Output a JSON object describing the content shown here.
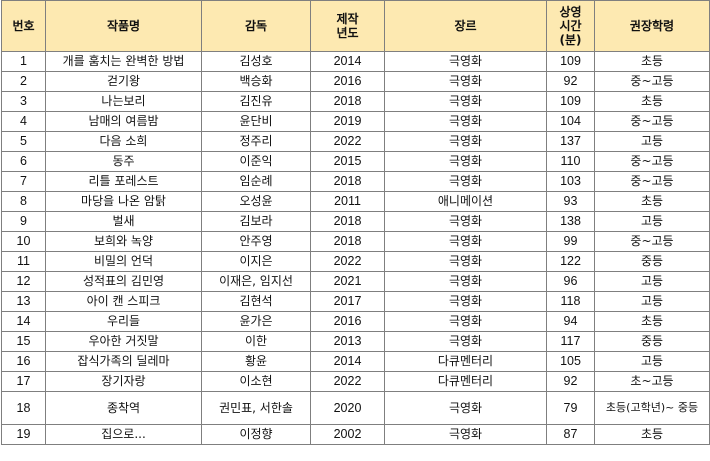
{
  "table": {
    "headers": {
      "no": "번호",
      "title": "작품명",
      "director": "감독",
      "year_line1": "제작",
      "year_line2": "년도",
      "genre": "장르",
      "runtime_line1": "상영",
      "runtime_line2": "시간",
      "runtime_line3": "(분)",
      "grade": "권장학령"
    },
    "rows": [
      {
        "no": "1",
        "title": "개를 훔치는 완벽한 방법",
        "director": "김성호",
        "year": "2014",
        "genre": "극영화",
        "runtime": "109",
        "grade": "초등"
      },
      {
        "no": "2",
        "title": "걷기왕",
        "director": "백승화",
        "year": "2016",
        "genre": "극영화",
        "runtime": "92",
        "grade": "중~고등"
      },
      {
        "no": "3",
        "title": "나는보리",
        "director": "김진유",
        "year": "2018",
        "genre": "극영화",
        "runtime": "109",
        "grade": "초등"
      },
      {
        "no": "4",
        "title": "남매의 여름밤",
        "director": "윤단비",
        "year": "2019",
        "genre": "극영화",
        "runtime": "104",
        "grade": "중~고등"
      },
      {
        "no": "5",
        "title": "다음 소희",
        "director": "정주리",
        "year": "2022",
        "genre": "극영화",
        "runtime": "137",
        "grade": "고등"
      },
      {
        "no": "6",
        "title": "동주",
        "director": "이준익",
        "year": "2015",
        "genre": "극영화",
        "runtime": "110",
        "grade": "중~고등"
      },
      {
        "no": "7",
        "title": "리틀 포레스트",
        "director": "임순례",
        "year": "2018",
        "genre": "극영화",
        "runtime": "103",
        "grade": "중~고등"
      },
      {
        "no": "8",
        "title": "마당을 나온 암탉",
        "director": "오성윤",
        "year": "2011",
        "genre": "애니메이션",
        "runtime": "93",
        "grade": "초등"
      },
      {
        "no": "9",
        "title": "벌새",
        "director": "김보라",
        "year": "2018",
        "genre": "극영화",
        "runtime": "138",
        "grade": "고등"
      },
      {
        "no": "10",
        "title": "보희와 녹양",
        "director": "안주영",
        "year": "2018",
        "genre": "극영화",
        "runtime": "99",
        "grade": "중~고등"
      },
      {
        "no": "11",
        "title": "비밀의 언덕",
        "director": "이지은",
        "year": "2022",
        "genre": "극영화",
        "runtime": "122",
        "grade": "중등"
      },
      {
        "no": "12",
        "title": "성적표의 김민영",
        "director": "이재은, 임지선",
        "year": "2021",
        "genre": "극영화",
        "runtime": "96",
        "grade": "고등"
      },
      {
        "no": "13",
        "title": "아이 캔 스피크",
        "director": "김현석",
        "year": "2017",
        "genre": "극영화",
        "runtime": "118",
        "grade": "고등"
      },
      {
        "no": "14",
        "title": "우리들",
        "director": "윤가은",
        "year": "2016",
        "genre": "극영화",
        "runtime": "94",
        "grade": "초등"
      },
      {
        "no": "15",
        "title": "우아한 거짓말",
        "director": "이한",
        "year": "2013",
        "genre": "극영화",
        "runtime": "117",
        "grade": "중등"
      },
      {
        "no": "16",
        "title": "잡식가족의 딜레마",
        "director": "황윤",
        "year": "2014",
        "genre": "다큐멘터리",
        "runtime": "105",
        "grade": "고등"
      },
      {
        "no": "17",
        "title": "장기자랑",
        "director": "이소현",
        "year": "2022",
        "genre": "다큐멘터리",
        "runtime": "92",
        "grade": "초~고등"
      },
      {
        "no": "18",
        "title": "종착역",
        "director": "권민표, 서한솔",
        "year": "2020",
        "genre": "극영화",
        "runtime": "79",
        "grade": "초등(고학년)~ 중등"
      },
      {
        "no": "19",
        "title": "집으로...",
        "director": "이정향",
        "year": "2002",
        "genre": "극영화",
        "runtime": "87",
        "grade": "초등"
      }
    ]
  }
}
